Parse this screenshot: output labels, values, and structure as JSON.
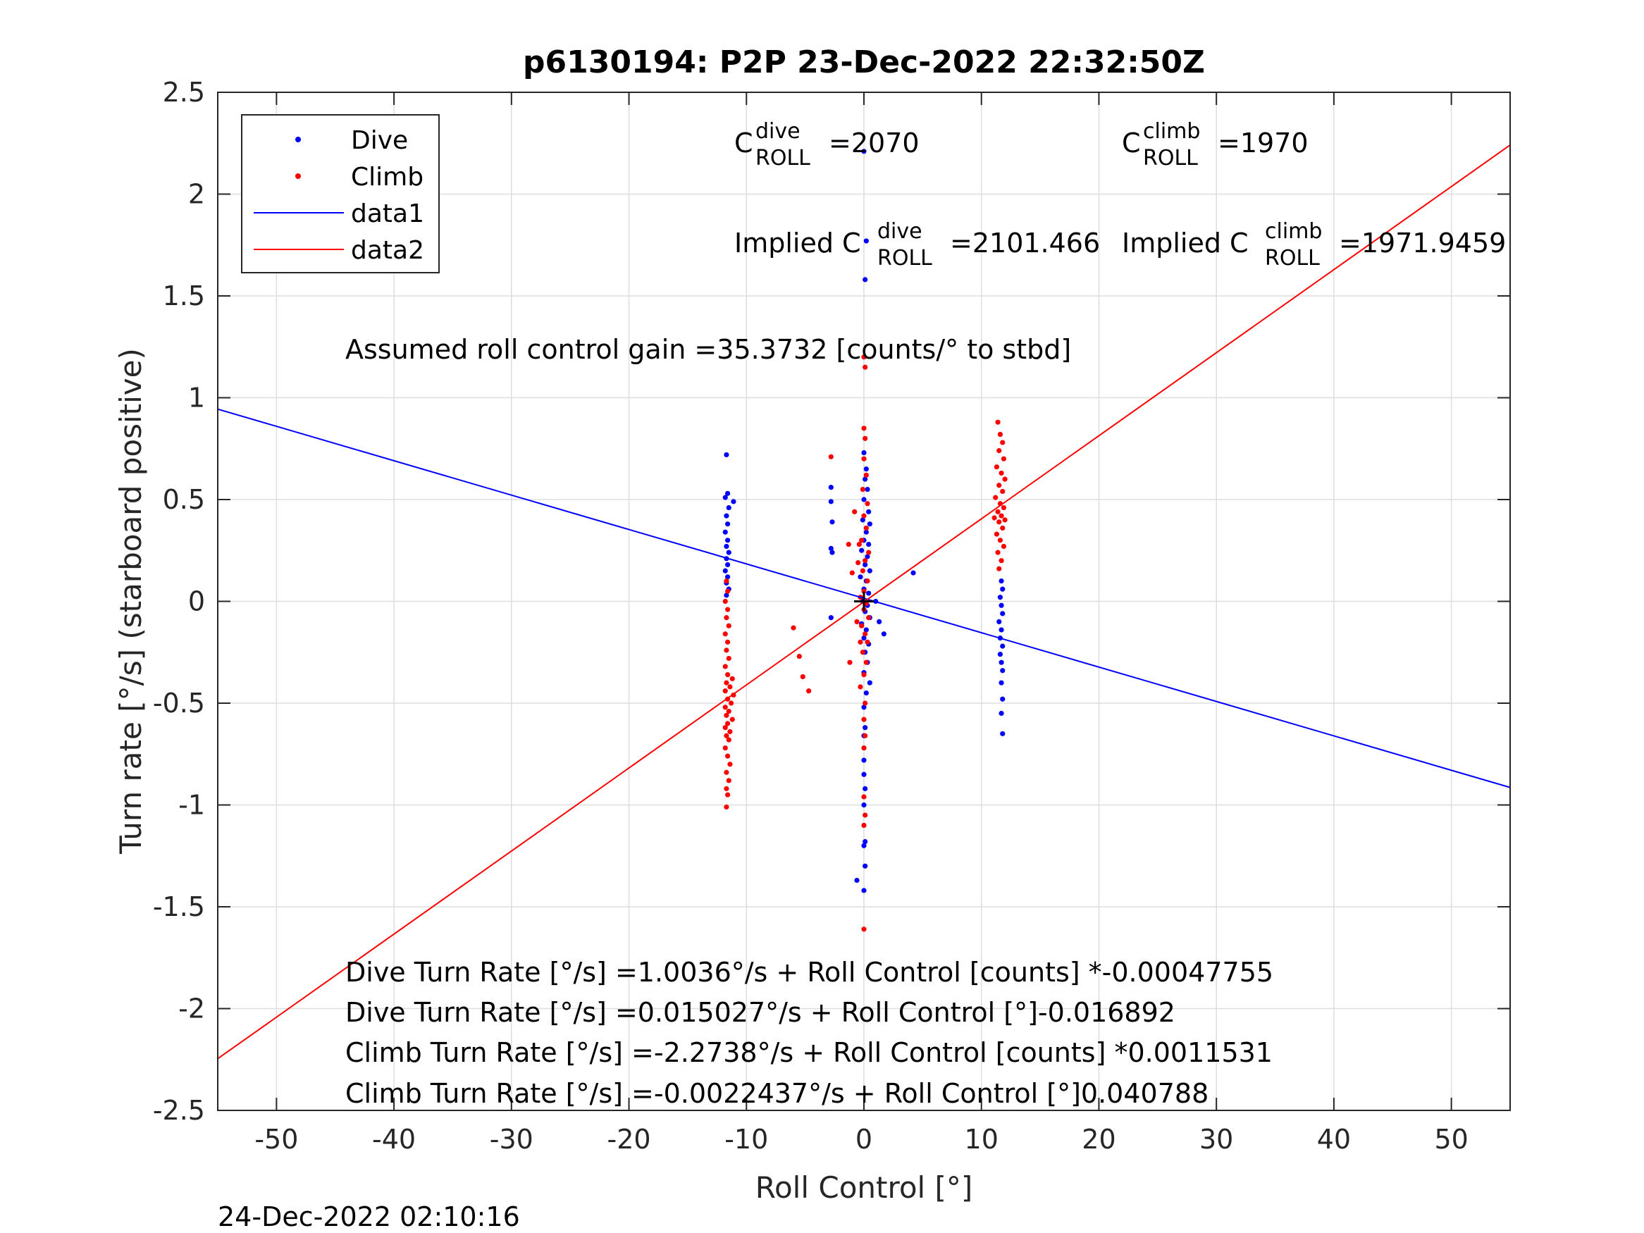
{
  "chart_data": {
    "type": "scatter",
    "title": "p6130194: P2P 23-Dec-2022 22:32:50Z",
    "xlabel": "Roll Control [°]",
    "ylabel": "Turn rate [°/s] (starboard positive)",
    "xlim": [
      -55,
      55
    ],
    "ylim": [
      -2.5,
      2.5
    ],
    "xticks": [
      -50,
      -40,
      -30,
      -20,
      -10,
      0,
      10,
      20,
      30,
      40,
      50
    ],
    "yticks": [
      -2.5,
      -2,
      -1.5,
      -1,
      -0.5,
      0,
      0.5,
      1,
      1.5,
      2,
      2.5
    ],
    "xtick_labels": [
      "-50",
      "-40",
      "-30",
      "-20",
      "-10",
      "0",
      "10",
      "20",
      "30",
      "40",
      "50"
    ],
    "ytick_labels": [
      "-2.5",
      "-2",
      "-1.5",
      "-1",
      "-0.5",
      "0",
      "0.5",
      "1",
      "1.5",
      "2",
      "2.5"
    ],
    "grid": true,
    "legend_position": "top-left",
    "series": [
      {
        "name": "Dive",
        "kind": "scatter",
        "color": "#0000ff",
        "points": [
          [
            -11.7,
            0.72
          ],
          [
            -11.6,
            0.53
          ],
          [
            -11.8,
            0.51
          ],
          [
            -11.5,
            0.46
          ],
          [
            -11.7,
            0.42
          ],
          [
            -11.6,
            0.38
          ],
          [
            -11.8,
            0.34
          ],
          [
            -11.6,
            0.3
          ],
          [
            -11.7,
            0.27
          ],
          [
            -11.5,
            0.24
          ],
          [
            -11.7,
            0.21
          ],
          [
            -11.6,
            0.18
          ],
          [
            -11.8,
            0.15
          ],
          [
            -11.6,
            0.12
          ],
          [
            -11.7,
            0.09
          ],
          [
            -11.5,
            0.06
          ],
          [
            -11.7,
            0.03
          ],
          [
            -11.1,
            0.49
          ],
          [
            -2.8,
            0.56
          ],
          [
            -2.8,
            0.49
          ],
          [
            -2.7,
            0.39
          ],
          [
            -2.8,
            0.26
          ],
          [
            -2.7,
            0.24
          ],
          [
            -2.8,
            -0.08
          ],
          [
            0.0,
            2.21
          ],
          [
            0.2,
            1.77
          ],
          [
            0.1,
            1.58
          ],
          [
            0.0,
            0.73
          ],
          [
            0.2,
            0.65
          ],
          [
            0.1,
            0.6
          ],
          [
            0.3,
            0.55
          ],
          [
            0.0,
            0.5
          ],
          [
            0.4,
            0.44
          ],
          [
            -0.1,
            0.4
          ],
          [
            0.5,
            0.38
          ],
          [
            0.2,
            0.34
          ],
          [
            0.0,
            0.3
          ],
          [
            0.4,
            0.28
          ],
          [
            -0.2,
            0.25
          ],
          [
            0.3,
            0.22
          ],
          [
            0.1,
            0.18
          ],
          [
            0.5,
            0.15
          ],
          [
            -0.3,
            0.12
          ],
          [
            0.2,
            0.1
          ],
          [
            0.0,
            0.06
          ],
          [
            0.4,
            0.04
          ],
          [
            -0.1,
            0.0
          ],
          [
            0.3,
            -0.02
          ],
          [
            0.1,
            -0.05
          ],
          [
            0.5,
            -0.08
          ],
          [
            -0.2,
            -0.11
          ],
          [
            0.2,
            -0.14
          ],
          [
            0.0,
            -0.18
          ],
          [
            0.4,
            -0.21
          ],
          [
            0.1,
            -0.25
          ],
          [
            0.3,
            -0.3
          ],
          [
            0.0,
            -0.35
          ],
          [
            0.5,
            -0.4
          ],
          [
            0.2,
            -0.45
          ],
          [
            0.0,
            -0.52
          ],
          [
            0.1,
            -0.62
          ],
          [
            0.0,
            -0.66
          ],
          [
            0.0,
            -0.78
          ],
          [
            0.0,
            -0.85
          ],
          [
            0.1,
            -0.92
          ],
          [
            0.0,
            -1.0
          ],
          [
            0.1,
            -1.18
          ],
          [
            0.0,
            -1.2
          ],
          [
            0.1,
            -1.3
          ],
          [
            -0.6,
            -1.37
          ],
          [
            0.0,
            -1.42
          ],
          [
            1.0,
            0.0
          ],
          [
            1.3,
            -0.1
          ],
          [
            1.7,
            -0.16
          ],
          [
            4.2,
            0.14
          ],
          [
            11.7,
            0.1
          ],
          [
            11.8,
            0.06
          ],
          [
            11.6,
            0.02
          ],
          [
            11.7,
            -0.02
          ],
          [
            11.8,
            -0.06
          ],
          [
            11.5,
            -0.1
          ],
          [
            11.7,
            -0.14
          ],
          [
            11.6,
            -0.18
          ],
          [
            11.8,
            -0.22
          ],
          [
            11.6,
            -0.26
          ],
          [
            11.7,
            -0.3
          ],
          [
            11.8,
            -0.34
          ],
          [
            11.7,
            -0.4
          ],
          [
            11.8,
            -0.48
          ],
          [
            11.7,
            -0.55
          ],
          [
            11.8,
            -0.65
          ]
        ]
      },
      {
        "name": "Climb",
        "kind": "scatter",
        "color": "#ff0000",
        "points": [
          [
            -11.7,
            0.1
          ],
          [
            -11.6,
            0.05
          ],
          [
            -11.8,
            0.0
          ],
          [
            -11.6,
            -0.04
          ],
          [
            -11.7,
            -0.08
          ],
          [
            -11.5,
            -0.12
          ],
          [
            -11.8,
            -0.16
          ],
          [
            -11.6,
            -0.2
          ],
          [
            -11.7,
            -0.24
          ],
          [
            -11.5,
            -0.28
          ],
          [
            -11.8,
            -0.32
          ],
          [
            -11.6,
            -0.36
          ],
          [
            -11.2,
            -0.38
          ],
          [
            -11.7,
            -0.4
          ],
          [
            -11.4,
            -0.42
          ],
          [
            -11.8,
            -0.44
          ],
          [
            -11.1,
            -0.46
          ],
          [
            -11.6,
            -0.48
          ],
          [
            -11.3,
            -0.5
          ],
          [
            -11.8,
            -0.52
          ],
          [
            -11.5,
            -0.54
          ],
          [
            -11.7,
            -0.56
          ],
          [
            -11.2,
            -0.58
          ],
          [
            -11.6,
            -0.6
          ],
          [
            -11.8,
            -0.62
          ],
          [
            -11.4,
            -0.64
          ],
          [
            -11.7,
            -0.66
          ],
          [
            -11.5,
            -0.68
          ],
          [
            -11.8,
            -0.72
          ],
          [
            -11.6,
            -0.76
          ],
          [
            -11.4,
            -0.8
          ],
          [
            -11.7,
            -0.84
          ],
          [
            -11.5,
            -0.88
          ],
          [
            -11.7,
            -0.92
          ],
          [
            -11.6,
            -0.95
          ],
          [
            -11.7,
            -1.01
          ],
          [
            -2.8,
            0.71
          ],
          [
            -6.0,
            -0.13
          ],
          [
            -5.5,
            -0.27
          ],
          [
            -5.2,
            -0.37
          ],
          [
            -4.7,
            -0.44
          ],
          [
            -1.3,
            0.28
          ],
          [
            -1.0,
            0.14
          ],
          [
            -1.2,
            -0.3
          ],
          [
            -0.5,
            0.19
          ],
          [
            -0.4,
            0.28
          ],
          [
            -0.8,
            0.44
          ],
          [
            -0.3,
            -0.2
          ],
          [
            -0.6,
            -0.1
          ],
          [
            0.0,
            1.2
          ],
          [
            0.1,
            1.15
          ],
          [
            0.0,
            0.85
          ],
          [
            0.1,
            0.8
          ],
          [
            0.0,
            0.7
          ],
          [
            0.2,
            0.62
          ],
          [
            -0.1,
            0.55
          ],
          [
            0.3,
            0.48
          ],
          [
            0.0,
            0.42
          ],
          [
            0.2,
            0.36
          ],
          [
            -0.2,
            0.3
          ],
          [
            0.4,
            0.24
          ],
          [
            0.1,
            0.2
          ],
          [
            -0.1,
            0.15
          ],
          [
            0.3,
            0.1
          ],
          [
            0.0,
            0.05
          ],
          [
            -0.3,
            0.02
          ],
          [
            0.2,
            -0.01
          ],
          [
            0.0,
            -0.04
          ],
          [
            0.4,
            -0.08
          ],
          [
            -0.2,
            -0.12
          ],
          [
            0.1,
            -0.16
          ],
          [
            0.3,
            -0.2
          ],
          [
            -0.1,
            -0.25
          ],
          [
            0.2,
            -0.3
          ],
          [
            0.0,
            -0.36
          ],
          [
            -0.3,
            -0.42
          ],
          [
            0.1,
            -0.5
          ],
          [
            0.0,
            -0.58
          ],
          [
            0.1,
            -0.66
          ],
          [
            0.0,
            -0.72
          ],
          [
            0.0,
            -0.96
          ],
          [
            0.1,
            -1.05
          ],
          [
            0.0,
            -1.1
          ],
          [
            0.0,
            -1.61
          ],
          [
            11.4,
            0.88
          ],
          [
            11.6,
            0.82
          ],
          [
            11.8,
            0.78
          ],
          [
            11.5,
            0.74
          ],
          [
            11.9,
            0.7
          ],
          [
            11.3,
            0.66
          ],
          [
            11.7,
            0.63
          ],
          [
            12.0,
            0.6
          ],
          [
            11.5,
            0.57
          ],
          [
            11.8,
            0.54
          ],
          [
            11.2,
            0.51
          ],
          [
            11.6,
            0.48
          ],
          [
            11.9,
            0.46
          ],
          [
            11.4,
            0.44
          ],
          [
            11.7,
            0.42
          ],
          [
            11.1,
            0.41
          ],
          [
            12.0,
            0.4
          ],
          [
            11.5,
            0.39
          ],
          [
            11.8,
            0.36
          ],
          [
            11.3,
            0.33
          ],
          [
            11.6,
            0.3
          ],
          [
            11.9,
            0.27
          ],
          [
            11.4,
            0.24
          ],
          [
            11.7,
            0.2
          ],
          [
            11.5,
            0.16
          ]
        ]
      },
      {
        "name": "data1",
        "kind": "line",
        "color": "#0000ff",
        "points": [
          [
            -55,
            0.944
          ],
          [
            55,
            -0.914
          ]
        ]
      },
      {
        "name": "data2",
        "kind": "line",
        "color": "#ff0000",
        "points": [
          [
            -55,
            -2.246
          ],
          [
            55,
            2.241
          ]
        ]
      }
    ],
    "marker_point": [
      0,
      0
    ],
    "annotations": {
      "c_dive": {
        "base": "C",
        "sup": "dive",
        "sub": "ROLL",
        "value": "=2070"
      },
      "c_climb": {
        "base": "C",
        "sup": "climb",
        "sub": "ROLL",
        "value": "=1970"
      },
      "implied_dive": {
        "prefix": "Implied C",
        "sup": "dive",
        "sub": "ROLL",
        "value": "=2101.466"
      },
      "implied_climb": {
        "prefix": "Implied C",
        "sup": "climb",
        "sub": "ROLL",
        "value": "=1971.9459"
      },
      "gain": "Assumed roll control gain =35.3732 [counts/° to stbd]",
      "fits": [
        "Dive Turn Rate [°/s] =1.0036°/s + Roll Control [counts] *-0.00047755",
        "Dive Turn Rate [°/s] =0.015027°/s + Roll Control [°]-0.016892",
        "Climb Turn Rate [°/s] =-2.2738°/s + Roll Control [counts] *0.0011531",
        "Climb Turn Rate [°/s] =-0.0022437°/s + Roll Control [°]0.040788"
      ]
    },
    "timestamp": "24-Dec-2022 02:10:16"
  }
}
